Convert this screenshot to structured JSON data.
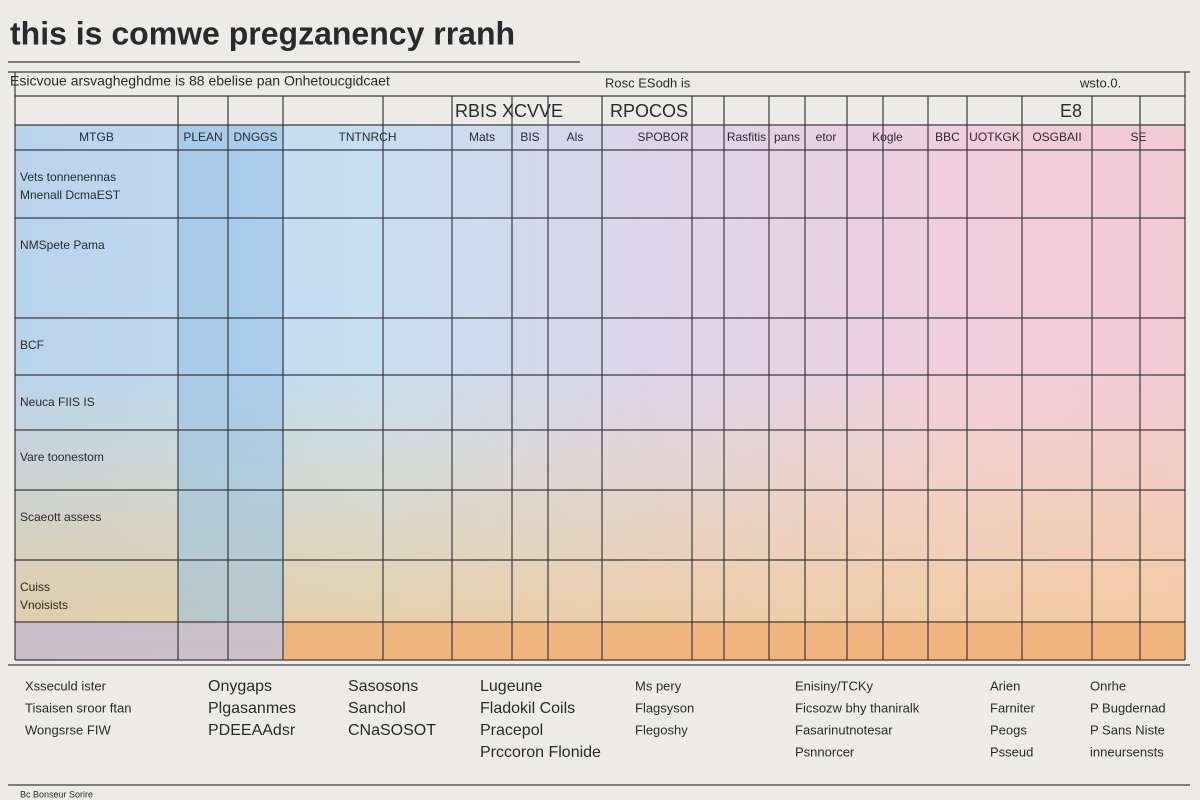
{
  "title": "this is comwe pregzanency rranh",
  "header": {
    "note": "Esicvoue arsvagheghdme is 88 ebelise pan Onhetoucgidcaet",
    "group_a": "Rosc ESodh is",
    "group_b": "RBIS XCVVE",
    "group_c": "RPOCOS",
    "group_d": "E8",
    "right": "wsto.0."
  },
  "columns": [
    "MTGB",
    "PLEAN",
    "DNGGS",
    "TNTNRCH",
    "Mats",
    "BIS",
    "Als",
    "SPOBOR",
    "Rasfitis",
    "pans",
    "etor",
    "Kogle",
    "BBC",
    "UOTKGK",
    "OSGBAII",
    "SE"
  ],
  "rows": [
    [
      "Vets tonnenennas",
      "Mnenall DcmaEST"
    ],
    [
      "NMSpete Pama"
    ],
    [
      "BCF"
    ],
    [
      "Neuca FIIS IS"
    ],
    [
      "Vare toonestom"
    ],
    [
      "Scaeott assess"
    ],
    [
      "Cuiss",
      "Vnoisists"
    ]
  ],
  "legend": [
    [
      "Xsseculd ister",
      "Tisaisen sroor ftan",
      "Wongsrse FIW"
    ],
    [
      "Onygaps",
      "Plgasanmes",
      "PDEEAAdsr"
    ],
    [
      "Sasosons",
      "Sanchol",
      "CNaSOSOT"
    ],
    [
      "Lugeune",
      "Fladokil Coils",
      "Pracepol",
      "Prccoron Flonide"
    ],
    [
      "Ms pery",
      "Flagsyson",
      "Flegoshy"
    ],
    [
      "Enisiny/TCKy",
      "Ficsozw bhy thaniralk",
      "Fasarinutnotesar",
      "Psnnorcer"
    ],
    [
      "Arien",
      "Farniter",
      "Peogs",
      "Psseud"
    ],
    [
      "Onrhe",
      "P Bugdernad",
      "P Sans Niste",
      "inneursensts"
    ]
  ],
  "footer": "Bc Bonseur Sorire"
}
